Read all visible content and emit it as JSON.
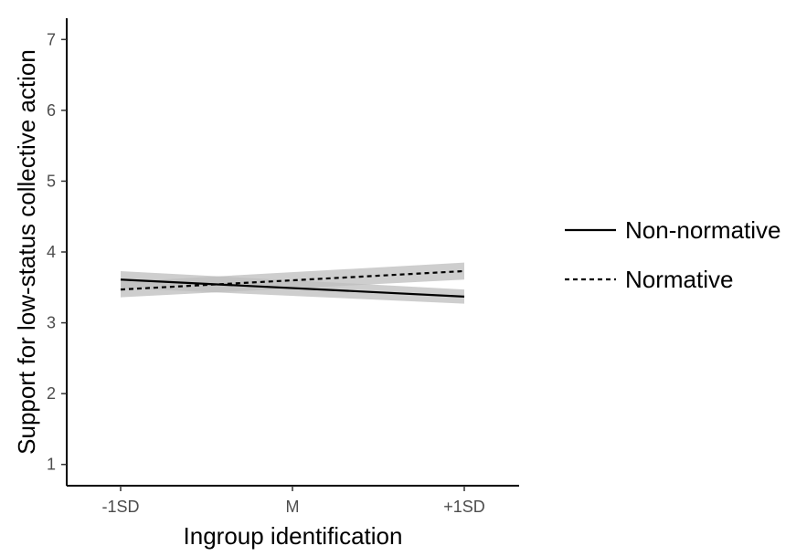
{
  "chart_data": {
    "type": "line",
    "xlabel": "Ingroup identification",
    "ylabel": "Support for low-status collective action",
    "categories": [
      "-1SD",
      "M",
      "+1SD"
    ],
    "ylim": [
      0.7,
      7.3
    ],
    "yticks": [
      1,
      2,
      3,
      4,
      5,
      6,
      7
    ],
    "grid": false,
    "legend_position": "right",
    "series": [
      {
        "name": "Non-normative",
        "linestyle": "solid",
        "color": "#000000",
        "x": [
          -1,
          1
        ],
        "values": [
          3.61,
          3.37
        ],
        "ci_lower": [
          3.49,
          3.27
        ],
        "ci_upper": [
          3.73,
          3.47
        ]
      },
      {
        "name": "Normative",
        "linestyle": "dashed",
        "color": "#000000",
        "x": [
          -1,
          1
        ],
        "values": [
          3.47,
          3.73
        ],
        "ci_lower": [
          3.36,
          3.61
        ],
        "ci_upper": [
          3.58,
          3.85
        ]
      }
    ],
    "ci_color": "#bebebe"
  }
}
